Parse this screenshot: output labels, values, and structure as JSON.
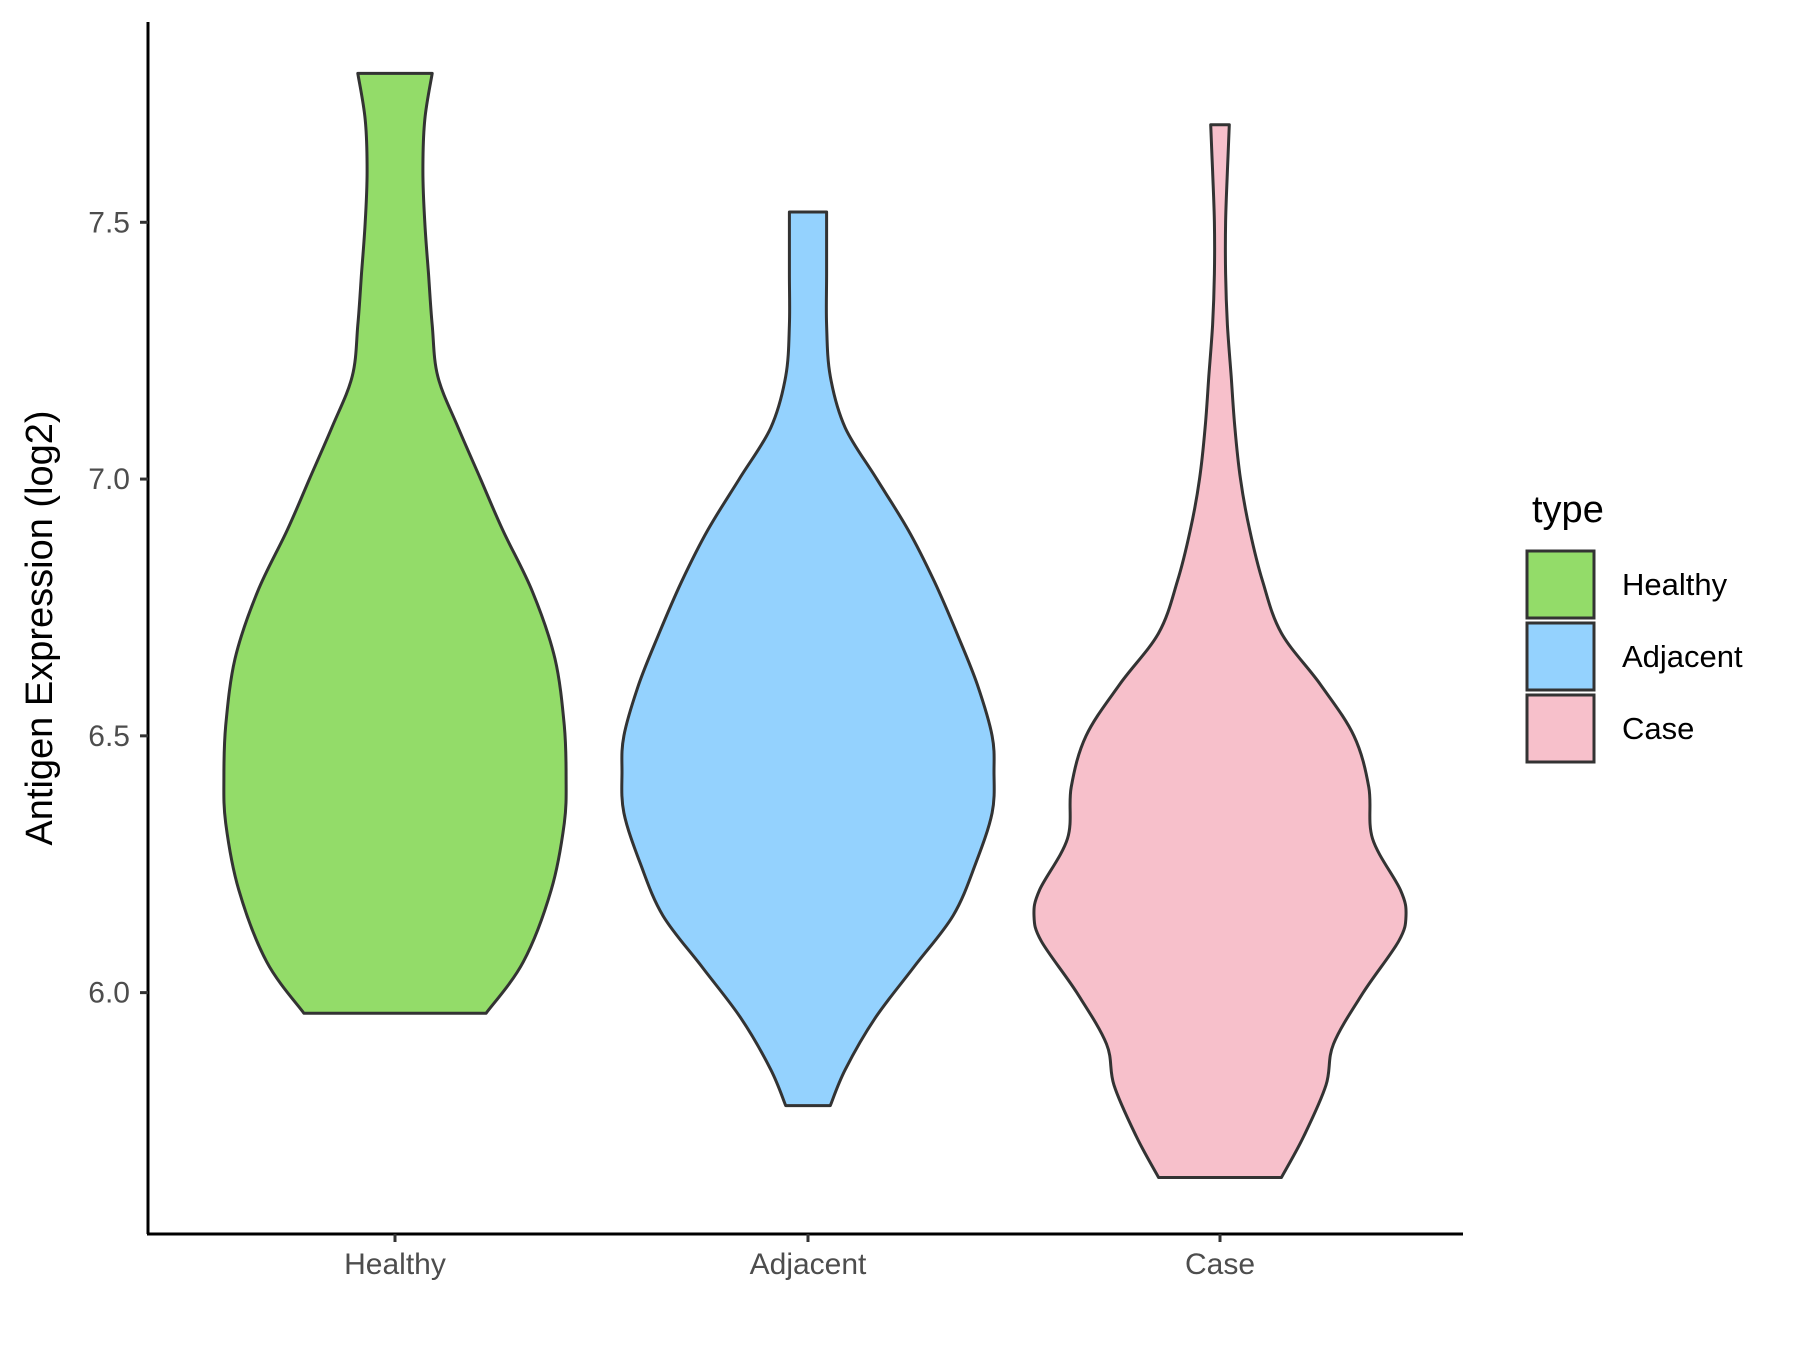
{
  "chart_data": {
    "type": "violin",
    "title": "",
    "xlabel": "",
    "ylabel": "Antigen Expression (log2)",
    "ylim": [
      5.53,
      7.89
    ],
    "yticks": [
      "6.0",
      "6.5",
      "7.0",
      "7.5"
    ],
    "categories": [
      "Healthy",
      "Adjacent",
      "Case"
    ],
    "grid": false,
    "legend": {
      "title": "type",
      "placement": "right",
      "entries": [
        "Healthy",
        "Adjacent",
        "Case"
      ]
    },
    "series": [
      {
        "name": "Healthy",
        "color": "#93dc69",
        "min": 5.96,
        "max": 7.79,
        "profile": [
          [
            5.96,
            0.49
          ],
          [
            6.06,
            0.69
          ],
          [
            6.2,
            0.84
          ],
          [
            6.33,
            0.91
          ],
          [
            6.42,
            0.92
          ],
          [
            6.52,
            0.91
          ],
          [
            6.65,
            0.86
          ],
          [
            6.78,
            0.74
          ],
          [
            6.9,
            0.58
          ],
          [
            7.0,
            0.46
          ],
          [
            7.1,
            0.34
          ],
          [
            7.2,
            0.23
          ],
          [
            7.3,
            0.2
          ],
          [
            7.4,
            0.18
          ],
          [
            7.5,
            0.16
          ],
          [
            7.6,
            0.15
          ],
          [
            7.7,
            0.16
          ],
          [
            7.79,
            0.2
          ]
        ]
      },
      {
        "name": "Adjacent",
        "color": "#94d2fe",
        "min": 5.78,
        "max": 7.52,
        "profile": [
          [
            5.78,
            0.12
          ],
          [
            5.85,
            0.2
          ],
          [
            5.95,
            0.36
          ],
          [
            6.05,
            0.57
          ],
          [
            6.15,
            0.78
          ],
          [
            6.25,
            0.9
          ],
          [
            6.35,
            0.99
          ],
          [
            6.43,
            1.0
          ],
          [
            6.5,
            0.99
          ],
          [
            6.6,
            0.91
          ],
          [
            6.7,
            0.8
          ],
          [
            6.8,
            0.68
          ],
          [
            6.9,
            0.54
          ],
          [
            7.0,
            0.37
          ],
          [
            7.1,
            0.2
          ],
          [
            7.2,
            0.12
          ],
          [
            7.3,
            0.1
          ],
          [
            7.4,
            0.1
          ],
          [
            7.52,
            0.1
          ]
        ]
      },
      {
        "name": "Case",
        "color": "#f7c0cb",
        "min": 5.64,
        "max": 7.69,
        "profile": [
          [
            5.64,
            0.33
          ],
          [
            5.72,
            0.45
          ],
          [
            5.82,
            0.57
          ],
          [
            5.9,
            0.61
          ],
          [
            6.0,
            0.77
          ],
          [
            6.1,
            0.96
          ],
          [
            6.15,
            1.0
          ],
          [
            6.2,
            0.97
          ],
          [
            6.3,
            0.82
          ],
          [
            6.4,
            0.8
          ],
          [
            6.5,
            0.72
          ],
          [
            6.6,
            0.54
          ],
          [
            6.7,
            0.33
          ],
          [
            6.8,
            0.23
          ],
          [
            6.9,
            0.16
          ],
          [
            7.0,
            0.11
          ],
          [
            7.1,
            0.08
          ],
          [
            7.2,
            0.06
          ],
          [
            7.3,
            0.04
          ],
          [
            7.4,
            0.03
          ],
          [
            7.5,
            0.03
          ],
          [
            7.6,
            0.04
          ],
          [
            7.69,
            0.05
          ]
        ]
      }
    ]
  }
}
